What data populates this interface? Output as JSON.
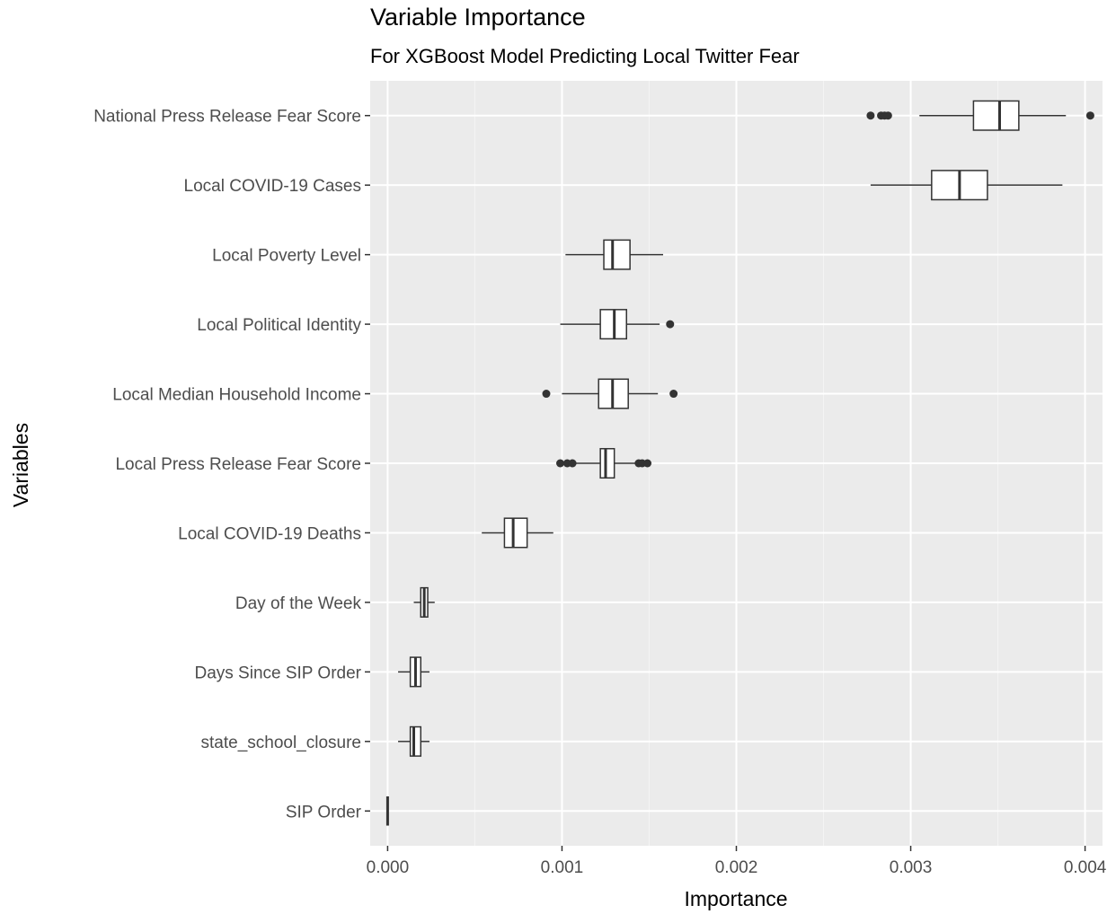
{
  "chart_data": {
    "type": "boxplot",
    "orientation": "horizontal",
    "title": "Variable Importance",
    "subtitle": "For XGBoost Model Predicting Local Twitter Fear",
    "xlabel": "Importance",
    "ylabel": "Variables",
    "xlim": [
      -0.0001,
      0.0041
    ],
    "x_ticks": [
      0.0,
      0.001,
      0.002,
      0.003,
      0.004
    ],
    "x_tick_labels": [
      "0.000",
      "0.001",
      "0.002",
      "0.003",
      "0.004"
    ],
    "grid": true,
    "background": "#ebebeb",
    "categories": [
      "National Press Release Fear Score",
      "Local COVID-19 Cases",
      "Local Poverty Level",
      "Local Political Identity",
      "Local Median Household Income",
      "Local Press Release Fear Score",
      "Local COVID-19 Deaths",
      "Day of the Week",
      "Days Since SIP Order",
      "state_school_closure",
      "SIP Order"
    ],
    "boxes": [
      {
        "min": 0.00305,
        "q1": 0.00336,
        "median": 0.00351,
        "q3": 0.00362,
        "max": 0.00389,
        "outliers": [
          0.00277,
          0.00283,
          0.00285,
          0.00287,
          0.00403
        ]
      },
      {
        "min": 0.00277,
        "q1": 0.00312,
        "median": 0.00328,
        "q3": 0.00344,
        "max": 0.00387,
        "outliers": []
      },
      {
        "min": 0.00102,
        "q1": 0.00124,
        "median": 0.00129,
        "q3": 0.00139,
        "max": 0.00158,
        "outliers": []
      },
      {
        "min": 0.00099,
        "q1": 0.00122,
        "median": 0.0013,
        "q3": 0.00137,
        "max": 0.00156,
        "outliers": [
          0.00162
        ]
      },
      {
        "min": 0.001,
        "q1": 0.00121,
        "median": 0.00129,
        "q3": 0.00138,
        "max": 0.00155,
        "outliers": [
          0.00091,
          0.00164
        ]
      },
      {
        "min": 0.00107,
        "q1": 0.00122,
        "median": 0.00125,
        "q3": 0.0013,
        "max": 0.00142,
        "outliers": [
          0.00099,
          0.00103,
          0.00106,
          0.00144,
          0.00146,
          0.00149
        ]
      },
      {
        "min": 0.00054,
        "q1": 0.00067,
        "median": 0.00072,
        "q3": 0.0008,
        "max": 0.00095,
        "outliers": []
      },
      {
        "min": 0.00015,
        "q1": 0.00019,
        "median": 0.00021,
        "q3": 0.00023,
        "max": 0.00027,
        "outliers": []
      },
      {
        "min": 6e-05,
        "q1": 0.00013,
        "median": 0.00016,
        "q3": 0.00019,
        "max": 0.00024,
        "outliers": []
      },
      {
        "min": 6e-05,
        "q1": 0.00013,
        "median": 0.00015,
        "q3": 0.00019,
        "max": 0.00024,
        "outliers": []
      },
      {
        "min": 0.0,
        "q1": 0.0,
        "median": 0.0,
        "q3": 0.0,
        "max": 0.0,
        "outliers": []
      }
    ]
  }
}
